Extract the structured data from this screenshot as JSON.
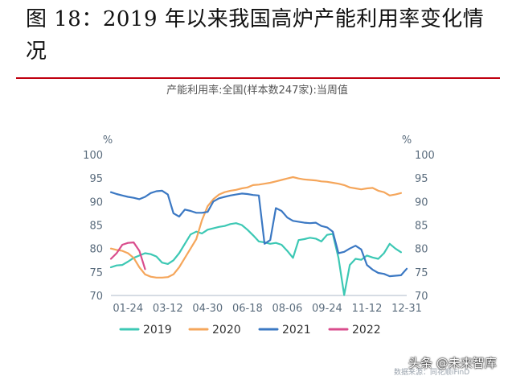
{
  "figure_title": "图 18：2019 年以来我国高炉产能利用率变化情况",
  "source_note": "数据来源：同花顺iFinD",
  "watermark": "头条 @未来智库",
  "chart_data": {
    "type": "line",
    "title": "产能利用率:全国(样本数247家):当周值",
    "y_unit_left": "%",
    "y_unit_right": "%",
    "ylim": [
      70,
      100
    ],
    "yticks": [
      70,
      75,
      80,
      85,
      90,
      95,
      100
    ],
    "xlim": [
      1,
      53
    ],
    "x_tick_labels": [
      "01-24",
      "03-12",
      "04-30",
      "06-18",
      "08-06",
      "09-24",
      "11-12",
      "12-31"
    ],
    "x_tick_weeks": [
      4,
      11,
      18,
      25,
      32,
      39,
      46,
      53
    ],
    "grid": false,
    "legend_position": "bottom",
    "colors": {
      "2019": "#3cc8b4",
      "2020": "#f5a65b",
      "2021": "#3b78c3",
      "2022": "#d94c8c",
      "axis": "#c9d1dc",
      "tick_text": "#5a6c7d"
    },
    "series": [
      {
        "name": "2019",
        "x": [
          1,
          2,
          3,
          4,
          5,
          6,
          7,
          8,
          9,
          10,
          11,
          12,
          13,
          14,
          15,
          16,
          17,
          18,
          19,
          20,
          21,
          22,
          23,
          24,
          25,
          26,
          27,
          28,
          29,
          30,
          31,
          32,
          33,
          34,
          35,
          36,
          37,
          38,
          39,
          40,
          41,
          42,
          43,
          44,
          45,
          46,
          47,
          48,
          49,
          50,
          51,
          52
        ],
        "values": [
          76.0,
          76.4,
          76.5,
          77.2,
          78.0,
          78.5,
          79.0,
          78.8,
          78.3,
          77.0,
          76.7,
          77.5,
          79.0,
          81.0,
          83.0,
          83.6,
          83.2,
          84.0,
          84.3,
          84.6,
          84.8,
          85.2,
          85.4,
          85.0,
          84.0,
          82.8,
          81.5,
          81.3,
          81.0,
          81.2,
          80.8,
          79.5,
          78.0,
          81.8,
          82.0,
          82.3,
          82.1,
          81.5,
          82.9,
          83.1,
          78.0,
          70.1,
          76.5,
          77.8,
          77.6,
          78.5,
          78.1,
          77.8,
          79.0,
          81.0,
          80.0,
          79.2
        ]
      },
      {
        "name": "2020",
        "x": [
          1,
          2,
          3,
          4,
          5,
          6,
          7,
          8,
          9,
          10,
          11,
          12,
          13,
          14,
          15,
          16,
          17,
          18,
          19,
          20,
          21,
          22,
          23,
          24,
          25,
          26,
          27,
          28,
          29,
          30,
          31,
          32,
          33,
          34,
          35,
          36,
          37,
          38,
          39,
          40,
          41,
          42,
          43,
          44,
          45,
          46,
          47,
          48,
          49,
          50,
          51,
          52
        ],
        "values": [
          80.0,
          79.7,
          79.5,
          79.0,
          78.0,
          76.0,
          74.5,
          74.0,
          73.8,
          73.8,
          73.9,
          74.5,
          76.0,
          78.0,
          80.0,
          82.0,
          86.0,
          89.0,
          90.5,
          91.5,
          92.0,
          92.3,
          92.5,
          92.8,
          93.0,
          93.5,
          93.6,
          93.8,
          94.0,
          94.3,
          94.6,
          94.9,
          95.2,
          94.9,
          94.7,
          94.6,
          94.5,
          94.3,
          94.2,
          94.0,
          93.8,
          93.5,
          93.0,
          92.8,
          92.6,
          92.8,
          92.9,
          92.3,
          92.0,
          91.3,
          91.5,
          91.8
        ]
      },
      {
        "name": "2021",
        "x": [
          1,
          2,
          3,
          4,
          5,
          6,
          7,
          8,
          9,
          10,
          11,
          12,
          13,
          14,
          15,
          16,
          17,
          18,
          19,
          20,
          21,
          22,
          23,
          24,
          25,
          26,
          27,
          28,
          29,
          30,
          31,
          32,
          33,
          34,
          35,
          36,
          37,
          38,
          39,
          40,
          41,
          42,
          43,
          44,
          45,
          46,
          47,
          48,
          49,
          50,
          51,
          52,
          53
        ],
        "values": [
          92.0,
          91.6,
          91.3,
          91.0,
          90.8,
          90.5,
          91.0,
          91.8,
          92.2,
          92.3,
          91.5,
          87.5,
          86.8,
          88.3,
          88.0,
          87.6,
          87.6,
          87.8,
          90.0,
          90.7,
          91.0,
          91.3,
          91.5,
          91.7,
          91.6,
          91.4,
          91.3,
          81.0,
          81.8,
          88.6,
          88.0,
          86.6,
          85.9,
          85.7,
          85.5,
          85.4,
          85.5,
          84.8,
          84.5,
          83.6,
          79.0,
          79.3,
          80.0,
          80.6,
          79.8,
          76.5,
          75.5,
          74.8,
          74.6,
          74.1,
          74.2,
          74.3,
          75.7
        ]
      },
      {
        "name": "2022",
        "x": [
          1,
          2,
          3,
          4,
          5,
          6,
          7
        ],
        "values": [
          77.8,
          79.0,
          80.8,
          81.2,
          81.3,
          79.5,
          75.6
        ]
      }
    ]
  }
}
